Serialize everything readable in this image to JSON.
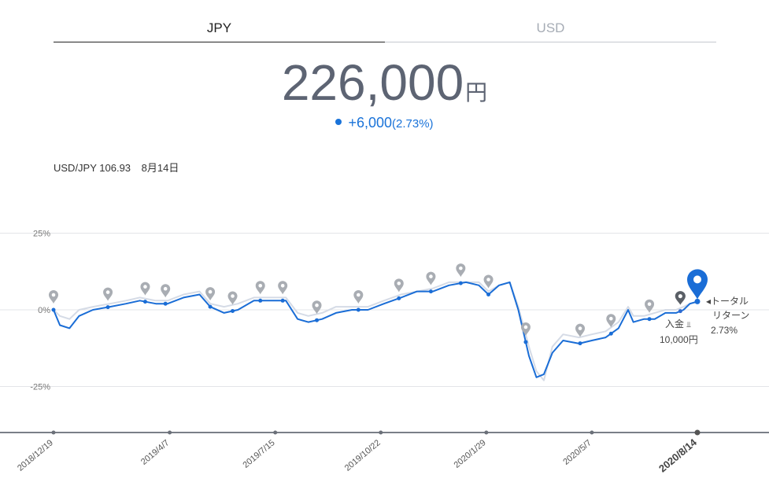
{
  "tabs": [
    {
      "label": "JPY",
      "active": true
    },
    {
      "label": "USD",
      "active": false
    }
  ],
  "total": {
    "value": "226,000",
    "unit": "円"
  },
  "change": {
    "value": "+6,000",
    "pct": "(2.73%)"
  },
  "rate": {
    "pair": "USD/JPY 106.93",
    "date": "8月14日"
  },
  "colors": {
    "main": "#1a6dd6",
    "benchmark": "#d5dbe6",
    "marker_gray": "#a9adb3",
    "marker_dark": "#5a5f66",
    "axis": "#7a7f87"
  },
  "annotations": {
    "total_return_label_1": "◂トータル",
    "total_return_label_2": "リターン",
    "total_return_value": "2.73%",
    "deposit_label": "入金",
    "deposit_amount": "10,000円"
  },
  "chart_data": {
    "type": "line",
    "ylim": [
      -40,
      30
    ],
    "yticks": [
      {
        "value": 25,
        "label": "25%"
      },
      {
        "value": 0,
        "label": "0%"
      },
      {
        "value": -25,
        "label": "-25%"
      }
    ],
    "xticks": [
      {
        "date": "2018-12-19",
        "label": "2018/12/19",
        "bold": false
      },
      {
        "date": "2019-04-07",
        "label": "2019/4/7",
        "bold": false
      },
      {
        "date": "2019-07-15",
        "label": "2019/7/15",
        "bold": false
      },
      {
        "date": "2019-10-22",
        "label": "2019/10/22",
        "bold": false
      },
      {
        "date": "2020-01-29",
        "label": "2020/1/29",
        "bold": false
      },
      {
        "date": "2020-05-07",
        "label": "2020/5/7",
        "bold": false
      },
      {
        "date": "2020-08-14",
        "label": "2020/8/14",
        "bold": true
      }
    ],
    "x_range": [
      "2018-12-19",
      "2020-08-14"
    ],
    "grid": true,
    "series": [
      {
        "role": "total_return",
        "points": [
          [
            "2018-12-19",
            0
          ],
          [
            "2018-12-25",
            -5
          ],
          [
            "2019-01-03",
            -6
          ],
          [
            "2019-01-12",
            -2
          ],
          [
            "2019-01-25",
            0
          ],
          [
            "2019-02-10",
            1
          ],
          [
            "2019-02-25",
            2
          ],
          [
            "2019-03-10",
            3
          ],
          [
            "2019-03-25",
            2
          ],
          [
            "2019-04-05",
            2
          ],
          [
            "2019-04-20",
            4
          ],
          [
            "2019-05-05",
            5
          ],
          [
            "2019-05-15",
            1
          ],
          [
            "2019-05-28",
            -1
          ],
          [
            "2019-06-10",
            0
          ],
          [
            "2019-06-25",
            3
          ],
          [
            "2019-07-10",
            3
          ],
          [
            "2019-07-25",
            3
          ],
          [
            "2019-08-05",
            -3
          ],
          [
            "2019-08-15",
            -4
          ],
          [
            "2019-08-28",
            -3
          ],
          [
            "2019-09-10",
            -1
          ],
          [
            "2019-09-25",
            0
          ],
          [
            "2019-10-10",
            0
          ],
          [
            "2019-10-25",
            2
          ],
          [
            "2019-11-10",
            4
          ],
          [
            "2019-11-25",
            6
          ],
          [
            "2019-12-10",
            6
          ],
          [
            "2019-12-25",
            8
          ],
          [
            "2020-01-10",
            9
          ],
          [
            "2020-01-22",
            8
          ],
          [
            "2020-01-31",
            5
          ],
          [
            "2020-02-10",
            8
          ],
          [
            "2020-02-20",
            9
          ],
          [
            "2020-02-28",
            0
          ],
          [
            "2020-03-09",
            -15
          ],
          [
            "2020-03-16",
            -22
          ],
          [
            "2020-03-23",
            -21
          ],
          [
            "2020-03-31",
            -14
          ],
          [
            "2020-04-10",
            -10
          ],
          [
            "2020-04-25",
            -11
          ],
          [
            "2020-05-07",
            -10
          ],
          [
            "2020-05-20",
            -9
          ],
          [
            "2020-06-01",
            -6
          ],
          [
            "2020-06-10",
            0
          ],
          [
            "2020-06-15",
            -4
          ],
          [
            "2020-06-25",
            -3
          ],
          [
            "2020-07-05",
            -3
          ],
          [
            "2020-07-15",
            -1
          ],
          [
            "2020-07-25",
            -1
          ],
          [
            "2020-08-01",
            0
          ],
          [
            "2020-08-07",
            2
          ],
          [
            "2020-08-14",
            2.73
          ]
        ]
      },
      {
        "role": "benchmark",
        "points": [
          [
            "2018-12-19",
            0
          ],
          [
            "2018-12-25",
            -2
          ],
          [
            "2019-01-03",
            -3
          ],
          [
            "2019-01-12",
            0
          ],
          [
            "2019-01-25",
            1
          ],
          [
            "2019-02-10",
            2
          ],
          [
            "2019-02-25",
            3
          ],
          [
            "2019-03-10",
            4
          ],
          [
            "2019-03-25",
            3
          ],
          [
            "2019-04-05",
            3
          ],
          [
            "2019-04-20",
            5
          ],
          [
            "2019-05-05",
            6
          ],
          [
            "2019-05-15",
            2
          ],
          [
            "2019-05-28",
            1
          ],
          [
            "2019-06-10",
            2
          ],
          [
            "2019-06-25",
            4
          ],
          [
            "2019-07-10",
            4
          ],
          [
            "2019-07-25",
            4
          ],
          [
            "2019-08-05",
            -1
          ],
          [
            "2019-08-15",
            -2
          ],
          [
            "2019-08-28",
            -1
          ],
          [
            "2019-09-10",
            1
          ],
          [
            "2019-09-25",
            1
          ],
          [
            "2019-10-10",
            1
          ],
          [
            "2019-10-25",
            3
          ],
          [
            "2019-11-10",
            5
          ],
          [
            "2019-11-25",
            6
          ],
          [
            "2019-12-10",
            7
          ],
          [
            "2019-12-25",
            9
          ],
          [
            "2020-01-10",
            9
          ],
          [
            "2020-01-22",
            9
          ],
          [
            "2020-01-31",
            6
          ],
          [
            "2020-02-10",
            8
          ],
          [
            "2020-02-20",
            9
          ],
          [
            "2020-02-28",
            1
          ],
          [
            "2020-03-09",
            -12
          ],
          [
            "2020-03-16",
            -20
          ],
          [
            "2020-03-23",
            -23
          ],
          [
            "2020-03-31",
            -12
          ],
          [
            "2020-04-10",
            -8
          ],
          [
            "2020-04-25",
            -9
          ],
          [
            "2020-05-07",
            -8
          ],
          [
            "2020-05-20",
            -7
          ],
          [
            "2020-06-01",
            -4
          ],
          [
            "2020-06-10",
            1
          ],
          [
            "2020-06-15",
            -2
          ],
          [
            "2020-06-25",
            -2
          ],
          [
            "2020-07-05",
            -1
          ],
          [
            "2020-07-15",
            0
          ],
          [
            "2020-07-25",
            0
          ],
          [
            "2020-08-01",
            1
          ],
          [
            "2020-08-07",
            2
          ],
          [
            "2020-08-14",
            2.5
          ]
        ]
      }
    ],
    "markers": [
      {
        "date": "2018-12-19",
        "kind": "gray"
      },
      {
        "date": "2019-02-08",
        "kind": "gray"
      },
      {
        "date": "2019-03-15",
        "kind": "gray"
      },
      {
        "date": "2019-04-03",
        "kind": "gray"
      },
      {
        "date": "2019-05-15",
        "kind": "gray"
      },
      {
        "date": "2019-06-05",
        "kind": "gray"
      },
      {
        "date": "2019-07-01",
        "kind": "gray"
      },
      {
        "date": "2019-07-22",
        "kind": "gray"
      },
      {
        "date": "2019-08-23",
        "kind": "gray"
      },
      {
        "date": "2019-10-01",
        "kind": "gray"
      },
      {
        "date": "2019-11-08",
        "kind": "gray"
      },
      {
        "date": "2019-12-08",
        "kind": "gray"
      },
      {
        "date": "2020-01-05",
        "kind": "gray"
      },
      {
        "date": "2020-01-31",
        "kind": "gray"
      },
      {
        "date": "2020-03-06",
        "kind": "gray"
      },
      {
        "date": "2020-04-26",
        "kind": "gray"
      },
      {
        "date": "2020-05-25",
        "kind": "gray"
      },
      {
        "date": "2020-06-30",
        "kind": "gray"
      },
      {
        "date": "2020-07-29",
        "kind": "dark"
      },
      {
        "date": "2020-08-14",
        "kind": "current"
      }
    ]
  }
}
